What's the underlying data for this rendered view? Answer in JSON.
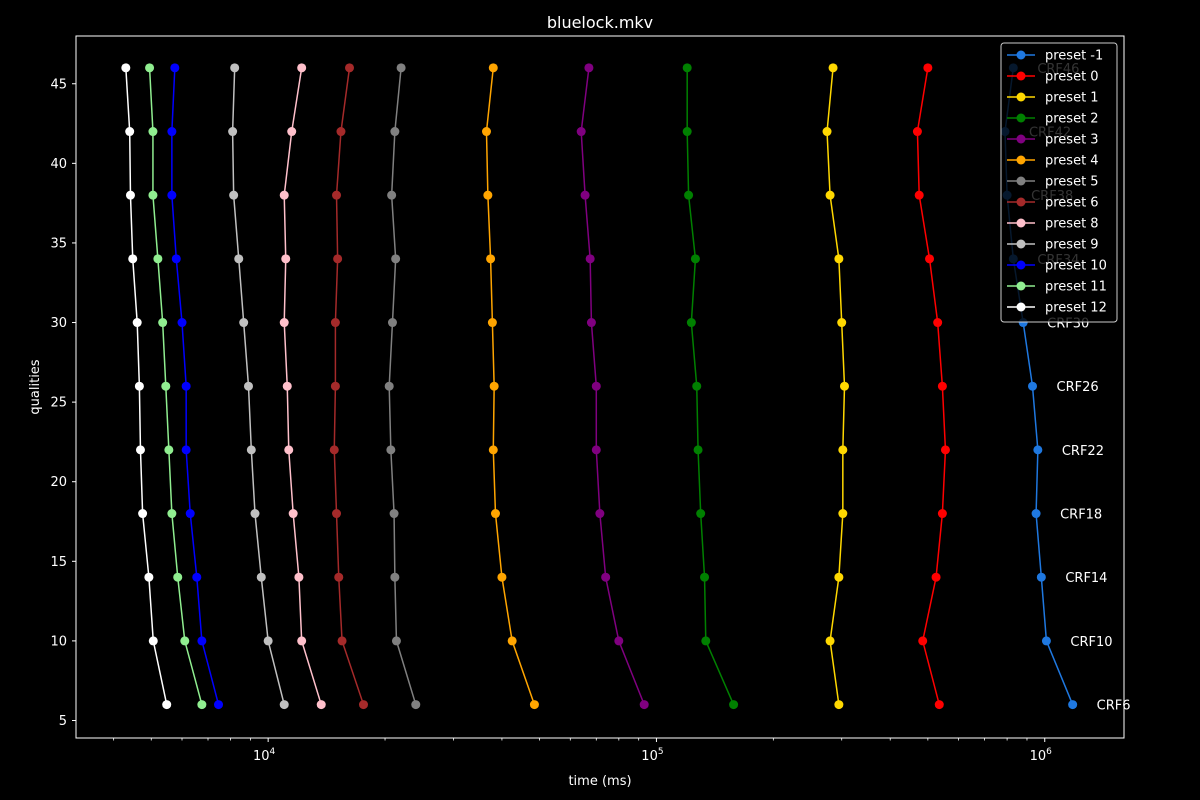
{
  "chart_data": {
    "type": "line",
    "title": "bluelock.mkv",
    "xlabel": "time (ms)",
    "ylabel": "qualities",
    "xscale": "log",
    "xlim": [
      3200,
      1600000
    ],
    "ylim": [
      3.9,
      48
    ],
    "x_ticks": [
      {
        "value": 10000,
        "base": "10",
        "exp": "4"
      },
      {
        "value": 100000,
        "base": "10",
        "exp": "5"
      },
      {
        "value": 1000000,
        "base": "10",
        "exp": "6"
      }
    ],
    "y_ticks": [
      5,
      10,
      15,
      20,
      25,
      30,
      35,
      40,
      45
    ],
    "grid": false,
    "legend_position": "top-right",
    "qualities": [
      46,
      42,
      38,
      34,
      30,
      26,
      22,
      18,
      14,
      10,
      6
    ],
    "point_labels": [
      "CRF46",
      "CRF42",
      "CRF38",
      "CRF34",
      "CRF30",
      "CRF26",
      "CRF22",
      "CRF18",
      "CRF14",
      "CRF10",
      "CRF6"
    ],
    "series": [
      {
        "name": "preset -1",
        "color": "#1f78e0",
        "x": [
          830000,
          790000,
          800000,
          830000,
          880000,
          930000,
          960000,
          950000,
          980000,
          1010000,
          1180000
        ]
      },
      {
        "name": "preset 0",
        "color": "#ff0000",
        "x": [
          500000,
          470000,
          475000,
          505000,
          530000,
          545000,
          555000,
          545000,
          525000,
          485000,
          535000
        ]
      },
      {
        "name": "preset 1",
        "color": "#ffd800",
        "x": [
          285000,
          275000,
          280000,
          295000,
          300000,
          305000,
          302000,
          302000,
          295000,
          280000,
          295000
        ]
      },
      {
        "name": "preset 2",
        "color": "#008000",
        "x": [
          120000,
          120000,
          121000,
          126000,
          123000,
          127000,
          128000,
          130000,
          133000,
          134000,
          158000
        ]
      },
      {
        "name": "preset 3",
        "color": "#800080",
        "x": [
          67000,
          64000,
          65500,
          67500,
          68000,
          70000,
          70000,
          71500,
          74000,
          80000,
          93000
        ]
      },
      {
        "name": "preset 4",
        "color": "#ffa500",
        "x": [
          38000,
          36500,
          36800,
          37400,
          37800,
          38200,
          38000,
          38500,
          40000,
          42500,
          48500
        ]
      },
      {
        "name": "preset 5",
        "color": "#808080",
        "x": [
          22000,
          21200,
          20800,
          21300,
          20900,
          20500,
          20700,
          21100,
          21200,
          21400,
          24000
        ]
      },
      {
        "name": "preset 6",
        "color": "#a52a2a",
        "x": [
          16200,
          15400,
          15000,
          15100,
          14900,
          14900,
          14800,
          15000,
          15200,
          15500,
          17600
        ]
      },
      {
        "name": "preset 8",
        "color": "#ffc0cb",
        "x": [
          12200,
          11500,
          11000,
          11100,
          11000,
          11200,
          11300,
          11600,
          12000,
          12200,
          13700
        ]
      },
      {
        "name": "preset 9",
        "color": "#c0c0c0",
        "x": [
          8200,
          8100,
          8150,
          8400,
          8650,
          8900,
          9050,
          9250,
          9600,
          10000,
          11000
        ]
      },
      {
        "name": "preset 10",
        "color": "#0000ff",
        "x": [
          5750,
          5650,
          5650,
          5800,
          6000,
          6150,
          6150,
          6300,
          6550,
          6750,
          7450
        ]
      },
      {
        "name": "preset 11",
        "color": "#90ee90",
        "x": [
          4950,
          5050,
          5050,
          5200,
          5350,
          5450,
          5550,
          5650,
          5850,
          6100,
          6750
        ]
      },
      {
        "name": "preset 12",
        "color": "#ffffff",
        "x": [
          4300,
          4400,
          4420,
          4480,
          4600,
          4660,
          4690,
          4750,
          4930,
          5060,
          5480
        ]
      }
    ]
  }
}
